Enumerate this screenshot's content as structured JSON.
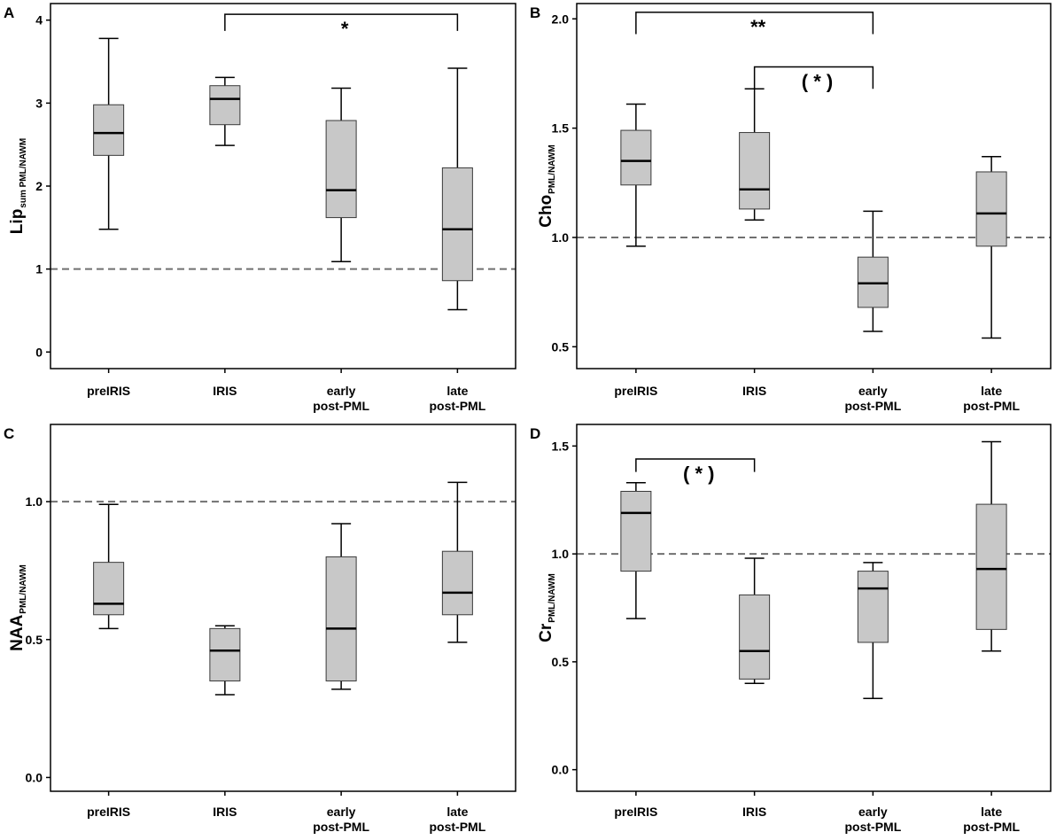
{
  "chart_data": [
    {
      "panel": "A",
      "type": "boxplot",
      "ylabel": "Lip",
      "ylabel_sub": "sum PML/NAWM",
      "ylim": [
        -0.2,
        4.2
      ],
      "yticks": [
        0,
        1,
        2,
        3,
        4
      ],
      "tick_labels": [
        "0",
        "1",
        "2",
        "3",
        "4"
      ],
      "reference_line": 1,
      "categories": [
        [
          "preIRIS"
        ],
        [
          "IRIS"
        ],
        [
          "early",
          "post-PML"
        ],
        [
          "late",
          "post-PML"
        ]
      ],
      "boxes": [
        {
          "min": 1.48,
          "q1": 2.37,
          "median": 2.64,
          "q3": 2.98,
          "max": 3.78
        },
        {
          "min": 2.49,
          "q1": 2.74,
          "median": 3.05,
          "q3": 3.21,
          "max": 3.31
        },
        {
          "min": 1.09,
          "q1": 1.62,
          "median": 1.95,
          "q3": 2.79,
          "max": 3.18
        },
        {
          "min": 0.51,
          "q1": 0.86,
          "median": 1.48,
          "q3": 2.22,
          "max": 3.42
        }
      ],
      "significance": [
        {
          "from": 1,
          "to": 3,
          "label": "*",
          "y": 4.07,
          "drop": 0.2
        }
      ]
    },
    {
      "panel": "B",
      "type": "boxplot",
      "ylabel": "Cho",
      "ylabel_sub": "PML/NAWM",
      "ylim": [
        0.4,
        2.07
      ],
      "yticks": [
        0.5,
        1.0,
        1.5,
        2.0
      ],
      "tick_labels": [
        "0.5",
        "1.0",
        "1.5",
        "2.0"
      ],
      "reference_line": 1.0,
      "categories": [
        [
          "preIRIS"
        ],
        [
          "IRIS"
        ],
        [
          "early",
          "post-PML"
        ],
        [
          "late",
          "post-PML"
        ]
      ],
      "boxes": [
        {
          "min": 0.96,
          "q1": 1.24,
          "median": 1.35,
          "q3": 1.49,
          "max": 1.61
        },
        {
          "min": 1.08,
          "q1": 1.13,
          "median": 1.22,
          "q3": 1.48,
          "max": 1.68
        },
        {
          "min": 0.57,
          "q1": 0.68,
          "median": 0.79,
          "q3": 0.91,
          "max": 1.12
        },
        {
          "min": 0.54,
          "q1": 0.96,
          "median": 1.11,
          "q3": 1.3,
          "max": 1.37
        }
      ],
      "significance": [
        {
          "from": 0,
          "to": 2,
          "label": "**",
          "y": 2.03,
          "drop": 0.1
        },
        {
          "from": 1,
          "to": 2,
          "label": "( * )",
          "y": 1.78,
          "drop": 0.1
        }
      ]
    },
    {
      "panel": "C",
      "type": "boxplot",
      "ylabel": "NAA",
      "ylabel_sub": "PML/NAWM",
      "ylim": [
        -0.05,
        1.28
      ],
      "yticks": [
        0.0,
        0.5,
        1.0
      ],
      "tick_labels": [
        "0.0",
        "0.5",
        "1.0"
      ],
      "reference_line": 1.0,
      "categories": [
        [
          "preIRIS"
        ],
        [
          "IRIS"
        ],
        [
          "early",
          "post-PML"
        ],
        [
          "late",
          "post-PML"
        ]
      ],
      "boxes": [
        {
          "min": 0.54,
          "q1": 0.59,
          "median": 0.63,
          "q3": 0.78,
          "max": 0.99
        },
        {
          "min": 0.3,
          "q1": 0.35,
          "median": 0.46,
          "q3": 0.54,
          "max": 0.55
        },
        {
          "min": 0.32,
          "q1": 0.35,
          "median": 0.54,
          "q3": 0.8,
          "max": 0.92
        },
        {
          "min": 0.49,
          "q1": 0.59,
          "median": 0.67,
          "q3": 0.82,
          "max": 1.07
        }
      ],
      "significance": []
    },
    {
      "panel": "D",
      "type": "boxplot",
      "ylabel": "Cr",
      "ylabel_sub": "PML/NAWM",
      "ylim": [
        -0.1,
        1.6
      ],
      "yticks": [
        0.0,
        0.5,
        1.0,
        1.5
      ],
      "tick_labels": [
        "0.0",
        "0.5",
        "1.0",
        "1.5"
      ],
      "reference_line": 1.0,
      "categories": [
        [
          "preIRIS"
        ],
        [
          "IRIS"
        ],
        [
          "early",
          "post-PML"
        ],
        [
          "late",
          "post-PML"
        ]
      ],
      "boxes": [
        {
          "min": 0.7,
          "q1": 0.92,
          "median": 1.19,
          "q3": 1.29,
          "max": 1.33
        },
        {
          "min": 0.4,
          "q1": 0.42,
          "median": 0.55,
          "q3": 0.81,
          "max": 0.98
        },
        {
          "min": 0.33,
          "q1": 0.59,
          "median": 0.84,
          "q3": 0.92,
          "max": 0.96
        },
        {
          "min": 0.55,
          "q1": 0.65,
          "median": 0.93,
          "q3": 1.23,
          "max": 1.52
        }
      ],
      "significance": [
        {
          "from": 0,
          "to": 1,
          "label": "( * )",
          "y": 1.44,
          "drop": 0.06
        }
      ]
    }
  ],
  "colors": {
    "box_fill": "#c8c8c8",
    "box_stroke": "#3a3a3a",
    "reference_line": "#707070",
    "axis": "#000000"
  }
}
